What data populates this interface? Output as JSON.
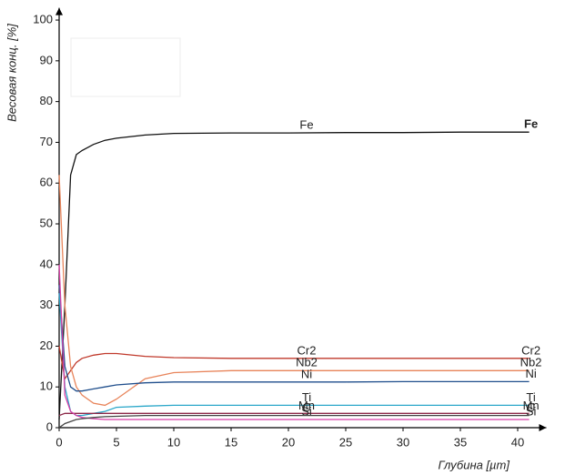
{
  "chart_data": {
    "type": "line",
    "x_label": "Глубина [µm]",
    "y_label": "Весовая конц. [%]",
    "x": [
      0,
      0.5,
      1,
      1.5,
      2,
      3,
      4,
      5,
      7.5,
      10,
      15,
      20,
      25,
      30,
      35,
      40,
      41
    ],
    "series": [
      {
        "name": "Fe",
        "color": "#111111",
        "values": [
          2,
          30,
          62,
          67,
          68,
          69.5,
          70.5,
          71,
          71.8,
          72.2,
          72.3,
          72.3,
          72.4,
          72.4,
          72.5,
          72.5,
          72.5
        ]
      },
      {
        "name": "Cr2",
        "color": "#c0392b",
        "values": [
          20,
          12,
          14,
          16,
          17,
          17.8,
          18.2,
          18.2,
          17.5,
          17.2,
          17,
          17,
          17,
          17,
          17,
          17,
          17
        ]
      },
      {
        "name": "Nb2",
        "color": "#e8845a",
        "values": [
          62,
          30,
          15,
          10,
          8,
          6,
          5.5,
          7,
          12,
          13.5,
          14,
          14,
          14,
          14,
          14,
          14,
          14
        ]
      },
      {
        "name": "Ni",
        "color": "#1f4e8c",
        "values": [
          35,
          15,
          10,
          9,
          9,
          9.5,
          10,
          10.5,
          11,
          11.2,
          11.2,
          11.2,
          11.2,
          11.3,
          11.3,
          11.3,
          11.3
        ]
      },
      {
        "name": "Ti",
        "color": "#2aa7c9",
        "values": [
          33,
          10,
          4,
          3,
          3,
          3.5,
          4,
          5,
          5.3,
          5.5,
          5.5,
          5.5,
          5.5,
          5.5,
          5.5,
          5.5,
          5.5
        ]
      },
      {
        "name": "Mn",
        "color": "#8e2a4a",
        "values": [
          3,
          3.5,
          3.5,
          3.5,
          3.5,
          3.5,
          3.5,
          3.5,
          3.5,
          3.5,
          3.5,
          3.5,
          3.5,
          3.5,
          3.5,
          3.5,
          3.5
        ]
      },
      {
        "name": "Si",
        "color": "#d63fa6",
        "values": [
          40,
          8,
          4,
          3,
          2.5,
          2.2,
          2,
          2,
          2,
          2,
          2,
          2,
          2,
          2,
          2,
          2,
          2
        ]
      },
      {
        "name": "C",
        "color": "#444444",
        "values": [
          0,
          1,
          1.5,
          2,
          2.2,
          2.5,
          2.7,
          2.8,
          3,
          3,
          3,
          3,
          3,
          3,
          3,
          3,
          3
        ]
      }
    ],
    "xlim": [
      0,
      42.5
    ],
    "ylim": [
      0,
      103
    ],
    "xticks": [
      0,
      5,
      10,
      15,
      20,
      25,
      30,
      35,
      40
    ],
    "yticks": [
      0,
      10,
      20,
      30,
      40,
      50,
      60,
      70,
      80,
      90,
      100
    ],
    "grid": false
  }
}
